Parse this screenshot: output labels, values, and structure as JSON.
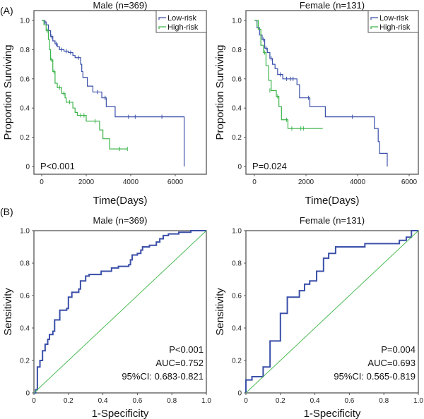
{
  "panel_labels": [
    "(A)",
    "(B)"
  ],
  "colors": {
    "low": "#3a4fa8",
    "high": "#3cb44b",
    "diag": "#4cbb55",
    "axis": "#555555"
  },
  "chart_data": [
    {
      "type": "line",
      "subtype": "kaplan-meier",
      "title": "Male (n=369)",
      "xlabel": "Time(Days)",
      "ylabel": "Proportion Surviving",
      "xlim": [
        0,
        6000
      ],
      "ylim": [
        0,
        1
      ],
      "xticks": [
        0,
        2000,
        4000,
        6000
      ],
      "xtick_labels": [
        "0",
        "2000",
        "4000",
        "6000"
      ],
      "yticks": [
        0,
        0.2,
        0.4,
        0.6,
        0.8,
        1.0
      ],
      "ytick_labels": [
        "0",
        "0.2",
        "0.4",
        "0.6",
        "0.8",
        "1.0"
      ],
      "annotations": [
        "P<0.001"
      ],
      "legend": "top-right",
      "series": [
        {
          "name": "Low-risk",
          "color_key": "low",
          "points": [
            [
              0,
              1
            ],
            [
              100,
              0.99
            ],
            [
              200,
              0.97
            ],
            [
              300,
              0.93
            ],
            [
              400,
              0.89
            ],
            [
              500,
              0.86
            ],
            [
              600,
              0.84
            ],
            [
              700,
              0.82
            ],
            [
              800,
              0.8
            ],
            [
              1000,
              0.79
            ],
            [
              1200,
              0.78
            ],
            [
              1400,
              0.76
            ],
            [
              1500,
              0.745
            ],
            [
              1750,
              0.7
            ],
            [
              1800,
              0.65
            ],
            [
              1850,
              0.61
            ],
            [
              2050,
              0.55
            ],
            [
              2300,
              0.51
            ],
            [
              2700,
              0.47
            ],
            [
              2900,
              0.41
            ],
            [
              3300,
              0.34
            ],
            [
              6400,
              0.0
            ]
          ],
          "censored": [
            [
              150,
              0.99
            ],
            [
              450,
              0.89
            ],
            [
              650,
              0.84
            ],
            [
              900,
              0.8
            ],
            [
              1100,
              0.79
            ],
            [
              1300,
              0.78
            ],
            [
              1650,
              0.745
            ],
            [
              2500,
              0.51
            ],
            [
              2850,
              0.47
            ],
            [
              3900,
              0.34
            ],
            [
              4200,
              0.34
            ],
            [
              5400,
              0.34
            ]
          ]
        },
        {
          "name": "High-risk",
          "color_key": "high",
          "points": [
            [
              0,
              1
            ],
            [
              100,
              0.97
            ],
            [
              200,
              0.93
            ],
            [
              300,
              0.87
            ],
            [
              350,
              0.8
            ],
            [
              400,
              0.73
            ],
            [
              500,
              0.65
            ],
            [
              600,
              0.57
            ],
            [
              700,
              0.54
            ],
            [
              900,
              0.5
            ],
            [
              1050,
              0.47
            ],
            [
              1100,
              0.44
            ],
            [
              1400,
              0.4
            ],
            [
              1500,
              0.37
            ],
            [
              1600,
              0.35
            ],
            [
              2000,
              0.31
            ],
            [
              2600,
              0.25
            ],
            [
              2750,
              0.19
            ],
            [
              3050,
              0.12
            ],
            [
              3850,
              0.12
            ]
          ],
          "censored": [
            [
              250,
              0.93
            ],
            [
              450,
              0.73
            ],
            [
              550,
              0.65
            ],
            [
              800,
              0.54
            ],
            [
              1000,
              0.5
            ],
            [
              1250,
              0.44
            ],
            [
              1750,
              0.35
            ],
            [
              1900,
              0.35
            ],
            [
              2400,
              0.31
            ],
            [
              3500,
              0.12
            ],
            [
              3850,
              0.12
            ]
          ]
        }
      ]
    },
    {
      "type": "line",
      "subtype": "kaplan-meier",
      "title": "Female (n=131)",
      "xlabel": "Time(Days)",
      "ylabel": "Proportion Surviving",
      "xlim": [
        0,
        6000
      ],
      "ylim": [
        0,
        1
      ],
      "xticks": [
        0,
        2000,
        4000,
        6000
      ],
      "xtick_labels": [
        "0",
        "2000",
        "4000",
        "6000"
      ],
      "yticks": [
        0,
        0.2,
        0.4,
        0.6,
        0.8,
        1.0
      ],
      "ytick_labels": [
        "0",
        "0.2",
        "0.4",
        "0.6",
        "0.8",
        "1.0"
      ],
      "annotations": [
        "P=0.024"
      ],
      "legend": "top-right",
      "series": [
        {
          "name": "Low-risk",
          "color_key": "low",
          "points": [
            [
              0,
              1
            ],
            [
              100,
              0.95
            ],
            [
              200,
              0.9
            ],
            [
              300,
              0.87
            ],
            [
              400,
              0.81
            ],
            [
              500,
              0.78
            ],
            [
              600,
              0.74
            ],
            [
              700,
              0.7
            ],
            [
              800,
              0.67
            ],
            [
              900,
              0.63
            ],
            [
              1100,
              0.6
            ],
            [
              1650,
              0.56
            ],
            [
              1750,
              0.47
            ],
            [
              2150,
              0.41
            ],
            [
              2750,
              0.34
            ],
            [
              4650,
              0.26
            ],
            [
              4800,
              0.17
            ],
            [
              4850,
              0.09
            ],
            [
              5150,
              0.0
            ]
          ],
          "censored": [
            [
              350,
              0.87
            ],
            [
              450,
              0.81
            ],
            [
              650,
              0.74
            ],
            [
              1000,
              0.63
            ],
            [
              1250,
              0.6
            ],
            [
              1400,
              0.6
            ],
            [
              1500,
              0.6
            ],
            [
              2100,
              0.47
            ],
            [
              3800,
              0.34
            ]
          ]
        },
        {
          "name": "High-risk",
          "color_key": "high",
          "points": [
            [
              0,
              1
            ],
            [
              150,
              0.94
            ],
            [
              250,
              0.83
            ],
            [
              350,
              0.78
            ],
            [
              450,
              0.69
            ],
            [
              550,
              0.59
            ],
            [
              650,
              0.52
            ],
            [
              850,
              0.48
            ],
            [
              950,
              0.41
            ],
            [
              1050,
              0.32
            ],
            [
              1300,
              0.26
            ],
            [
              2650,
              0.26
            ]
          ],
          "censored": [
            [
              100,
              0.97
            ],
            [
              400,
              0.78
            ],
            [
              600,
              0.52
            ],
            [
              900,
              0.48
            ],
            [
              1250,
              0.32
            ],
            [
              1450,
              0.26
            ],
            [
              1800,
              0.26
            ],
            [
              1900,
              0.26
            ]
          ]
        }
      ]
    },
    {
      "type": "line",
      "subtype": "roc",
      "title": "Male (n=369)",
      "xlabel": "1-Specificity",
      "ylabel": "Sensitivity",
      "xlim": [
        0,
        1
      ],
      "ylim": [
        0,
        1
      ],
      "xticks": [
        0,
        0.2,
        0.4,
        0.6,
        0.8,
        1.0
      ],
      "xtick_labels": [
        "0",
        "0.2",
        "0.4",
        "0.6",
        "0.8",
        "1.0"
      ],
      "yticks": [
        0,
        0.2,
        0.4,
        0.6,
        0.8,
        1.0
      ],
      "ytick_labels": [
        "0",
        "0.2",
        "0.4",
        "0.6",
        "0.8",
        "1.0"
      ],
      "annotations": [
        "P<0.001",
        "AUC=0.752",
        "95%CI: 0.683-0.821"
      ],
      "series": [
        {
          "name": "ROC",
          "color_key": "low",
          "points": [
            [
              0,
              0
            ],
            [
              0.01,
              0.02
            ],
            [
              0.02,
              0.16
            ],
            [
              0.035,
              0.2
            ],
            [
              0.05,
              0.26
            ],
            [
              0.065,
              0.3
            ],
            [
              0.08,
              0.33
            ],
            [
              0.09,
              0.36
            ],
            [
              0.11,
              0.38
            ],
            [
              0.12,
              0.45
            ],
            [
              0.15,
              0.51
            ],
            [
              0.19,
              0.52
            ],
            [
              0.2,
              0.59
            ],
            [
              0.22,
              0.62
            ],
            [
              0.26,
              0.64
            ],
            [
              0.27,
              0.69
            ],
            [
              0.3,
              0.72
            ],
            [
              0.32,
              0.73
            ],
            [
              0.37,
              0.73
            ],
            [
              0.39,
              0.75
            ],
            [
              0.41,
              0.75
            ],
            [
              0.45,
              0.77
            ],
            [
              0.49,
              0.78
            ],
            [
              0.55,
              0.79
            ],
            [
              0.56,
              0.82
            ],
            [
              0.57,
              0.85
            ],
            [
              0.6,
              0.86
            ],
            [
              0.62,
              0.88
            ],
            [
              0.63,
              0.9
            ],
            [
              0.67,
              0.91
            ],
            [
              0.71,
              0.93
            ],
            [
              0.73,
              0.95
            ],
            [
              0.75,
              0.97
            ],
            [
              0.78,
              0.98
            ],
            [
              0.84,
              0.99
            ],
            [
              0.91,
              1.0
            ],
            [
              1,
              1
            ]
          ]
        },
        {
          "name": "Reference",
          "color_key": "diag",
          "points": [
            [
              0,
              0
            ],
            [
              1,
              1
            ]
          ]
        }
      ]
    },
    {
      "type": "line",
      "subtype": "roc",
      "title": "Female (n=131)",
      "xlabel": "1-Specificity",
      "ylabel": "Sensitivity",
      "xlim": [
        0,
        1
      ],
      "ylim": [
        0,
        1
      ],
      "xticks": [
        0,
        0.2,
        0.4,
        0.6,
        0.8,
        1.0
      ],
      "xtick_labels": [
        "0",
        "0.2",
        "0.4",
        "0.6",
        "0.8",
        "1.0"
      ],
      "yticks": [
        0,
        0.2,
        0.4,
        0.6,
        0.8,
        1.0
      ],
      "ytick_labels": [
        "0",
        "0.2",
        "0.4",
        "0.6",
        "0.8",
        "1.0"
      ],
      "annotations": [
        "P=0.004",
        "AUC=0.693",
        "95%CI: 0.565-0.819"
      ],
      "series": [
        {
          "name": "ROC",
          "color_key": "low",
          "points": [
            [
              0,
              0
            ],
            [
              0,
              0.08
            ],
            [
              0.035,
              0.1
            ],
            [
              0.1,
              0.16
            ],
            [
              0.14,
              0.32
            ],
            [
              0.2,
              0.49
            ],
            [
              0.24,
              0.59
            ],
            [
              0.31,
              0.63
            ],
            [
              0.34,
              0.67
            ],
            [
              0.37,
              0.69
            ],
            [
              0.41,
              0.75
            ],
            [
              0.45,
              0.83
            ],
            [
              0.48,
              0.86
            ],
            [
              0.52,
              0.9
            ],
            [
              0.69,
              0.92
            ],
            [
              0.89,
              0.94
            ],
            [
              0.93,
              0.96
            ],
            [
              0.96,
              1.0
            ],
            [
              1,
              1
            ]
          ]
        },
        {
          "name": "Reference",
          "color_key": "diag",
          "points": [
            [
              0,
              0
            ],
            [
              1,
              1
            ]
          ]
        }
      ]
    }
  ]
}
